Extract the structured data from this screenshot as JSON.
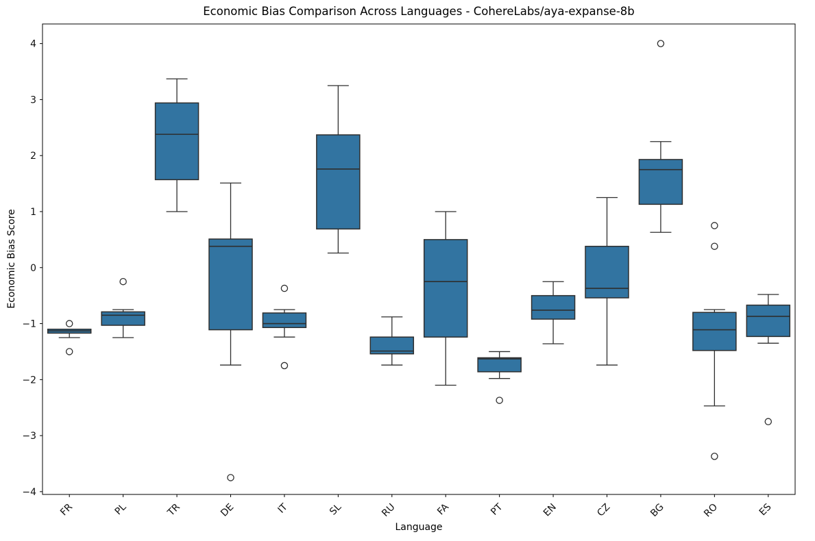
{
  "chart_data": {
    "type": "box",
    "title": "Economic Bias Comparison Across Languages - CohereLabs/aya-expanse-8b",
    "xlabel": "Language",
    "ylabel": "Economic Bias Score",
    "ylim": [
      -4.05,
      4.35
    ],
    "yticks": [
      4,
      3,
      2,
      1,
      0,
      -1,
      -2,
      -3,
      -4
    ],
    "grid": false,
    "legend": "none",
    "box_fill_color": "#3274A1",
    "box_line_color": "#2E2E2E",
    "spine_color": "#000000",
    "categories": [
      "FR",
      "PL",
      "TR",
      "DE",
      "IT",
      "SL",
      "RU",
      "FA",
      "PT",
      "EN",
      "CZ",
      "BG",
      "RO",
      "ES"
    ],
    "series": [
      {
        "label": "FR",
        "whislo": -1.25,
        "q1": -1.17,
        "med": -1.13,
        "q3": -1.1,
        "whishi": -1.1,
        "fliers": [
          -1.0,
          -1.5
        ]
      },
      {
        "label": "PL",
        "whislo": -1.25,
        "q1": -1.03,
        "med": -0.85,
        "q3": -0.79,
        "whishi": -0.75,
        "fliers": [
          -0.25
        ]
      },
      {
        "label": "TR",
        "whislo": 1.0,
        "q1": 1.57,
        "med": 2.38,
        "q3": 2.94,
        "whishi": 3.37,
        "fliers": []
      },
      {
        "label": "DE",
        "whislo": -1.74,
        "q1": -1.11,
        "med": 0.38,
        "q3": 0.51,
        "whishi": 1.51,
        "fliers": [
          -3.75
        ]
      },
      {
        "label": "IT",
        "whislo": -1.24,
        "q1": -1.07,
        "med": -1.0,
        "q3": -0.81,
        "whishi": -0.75,
        "fliers": [
          -0.37,
          -1.75
        ]
      },
      {
        "label": "SL",
        "whislo": 0.26,
        "q1": 0.69,
        "med": 1.76,
        "q3": 2.37,
        "whishi": 3.25,
        "fliers": []
      },
      {
        "label": "RU",
        "whislo": -1.74,
        "q1": -1.54,
        "med": -1.49,
        "q3": -1.24,
        "whishi": -0.88,
        "fliers": []
      },
      {
        "label": "FA",
        "whislo": -2.1,
        "q1": -1.24,
        "med": -0.25,
        "q3": 0.5,
        "whishi": 1.0,
        "fliers": []
      },
      {
        "label": "PT",
        "whislo": -1.98,
        "q1": -1.86,
        "med": -1.63,
        "q3": -1.61,
        "whishi": -1.5,
        "fliers": [
          -2.37
        ]
      },
      {
        "label": "EN",
        "whislo": -1.36,
        "q1": -0.92,
        "med": -0.76,
        "q3": -0.5,
        "whishi": -0.25,
        "fliers": []
      },
      {
        "label": "CZ",
        "whislo": -1.74,
        "q1": -0.54,
        "med": -0.37,
        "q3": 0.38,
        "whishi": 1.25,
        "fliers": []
      },
      {
        "label": "BG",
        "whislo": 0.63,
        "q1": 1.13,
        "med": 1.75,
        "q3": 1.93,
        "whishi": 2.25,
        "fliers": [
          4.0
        ]
      },
      {
        "label": "RO",
        "whislo": -2.47,
        "q1": -1.48,
        "med": -1.11,
        "q3": -0.8,
        "whishi": -0.75,
        "fliers": [
          0.75,
          0.38,
          -3.37
        ]
      },
      {
        "label": "ES",
        "whislo": -1.35,
        "q1": -1.23,
        "med": -0.87,
        "q3": -0.67,
        "whishi": -0.48,
        "fliers": [
          -2.75
        ]
      }
    ]
  }
}
